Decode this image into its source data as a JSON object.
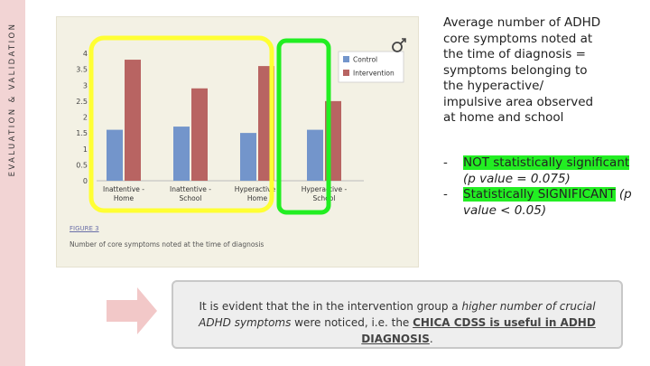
{
  "side_label": "EVALUATION & VALIDATION",
  "figure": {
    "label": "FIGURE 3",
    "caption": "Number of core symptoms noted at the time of diagnosis"
  },
  "chart_data": {
    "type": "bar",
    "categories": [
      "Inattentive - Home",
      "Inattentive - School",
      "Hyperactive - Home",
      "Hyperactive - School"
    ],
    "category_lines": [
      [
        "Inattentive -",
        "Home"
      ],
      [
        "Inattentive -",
        "School"
      ],
      [
        "Hyperactive -",
        "Home"
      ],
      [
        "Hyperactive -",
        "School"
      ]
    ],
    "series": [
      {
        "name": "Control",
        "values": [
          1.6,
          1.7,
          1.5,
          1.6
        ],
        "color": "#7395cb"
      },
      {
        "name": "Intervention",
        "values": [
          3.8,
          2.9,
          3.6,
          2.5
        ],
        "color": "#b86462"
      }
    ],
    "ylim": [
      0,
      4
    ],
    "yticks": [
      "0",
      "0.5",
      "1",
      "1.5",
      "2",
      "2.5",
      "3",
      "3.5",
      "4"
    ],
    "legend_position": "top-right",
    "highlight_colors": {
      "not_significant": "#ffff33",
      "significant": "#22ee22"
    }
  },
  "description": [
    "Average number of ADHD",
    "core symptoms noted at",
    "the time of diagnosis =",
    "symptoms belonging to",
    "the hyperactive/",
    "impulsive area observed",
    "at home and school"
  ],
  "bullets": [
    {
      "dash": "-",
      "highlight": "NOT statistically significant",
      "detail": " (p value = 0.075)"
    },
    {
      "dash": "-",
      "highlight": "Statistically SIGNIFICANT",
      "detail": " (p value < 0.05)"
    }
  ],
  "callout": {
    "part1": "It is evident that the in the intervention group a ",
    "emphasis": "higher number of crucial ADHD symptoms",
    "part2": " were noticed, i.e. the ",
    "strong": "CHICA CDSS is useful in ADHD DIAGNOSIS",
    "end": "."
  }
}
